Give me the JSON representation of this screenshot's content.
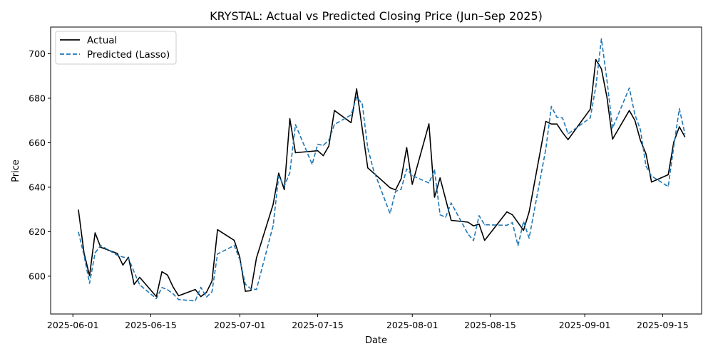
{
  "chart_data": {
    "type": "line",
    "title": "KRYSTAL: Actual vs Predicted Closing Price (Jun–Sep 2025)",
    "xlabel": "Date",
    "ylabel": "Price",
    "grid": false,
    "legend_position": "top-left",
    "x_range": [
      "2025-05-28",
      "2025-09-22"
    ],
    "y_range": [
      583,
      712
    ],
    "x_ticks": [
      "2025-06-01",
      "2025-06-15",
      "2025-07-01",
      "2025-07-15",
      "2025-08-01",
      "2025-08-15",
      "2025-09-01",
      "2025-09-15"
    ],
    "y_ticks": [
      600,
      620,
      640,
      660,
      680,
      700
    ],
    "colors": {
      "actual": "#000000",
      "predicted": "#1f77b4"
    },
    "series": [
      {
        "name": "Actual",
        "style": "solid",
        "points": [
          [
            "2025-06-02",
            629.8
          ],
          [
            "2025-06-03",
            610.5
          ],
          [
            "2025-06-04",
            600.2
          ],
          [
            "2025-06-05",
            619.5
          ],
          [
            "2025-06-06",
            613.0
          ],
          [
            "2025-06-09",
            610.2
          ],
          [
            "2025-06-10",
            605.0
          ],
          [
            "2025-06-11",
            608.5
          ],
          [
            "2025-06-12",
            596.3
          ],
          [
            "2025-06-13",
            599.5
          ],
          [
            "2025-06-16",
            590.8
          ],
          [
            "2025-06-17",
            602.0
          ],
          [
            "2025-06-18",
            600.5
          ],
          [
            "2025-06-19",
            595.2
          ],
          [
            "2025-06-20",
            591.2
          ],
          [
            "2025-06-23",
            594.0
          ],
          [
            "2025-06-24",
            590.8
          ],
          [
            "2025-06-25",
            592.7
          ],
          [
            "2025-06-26",
            597.8
          ],
          [
            "2025-06-27",
            620.9
          ],
          [
            "2025-06-30",
            616.1
          ],
          [
            "2025-07-01",
            608.5
          ],
          [
            "2025-07-02",
            593.2
          ],
          [
            "2025-07-03",
            593.5
          ],
          [
            "2025-07-04",
            608.2
          ],
          [
            "2025-07-07",
            632.3
          ],
          [
            "2025-07-08",
            646.3
          ],
          [
            "2025-07-09",
            638.9
          ],
          [
            "2025-07-10",
            670.8
          ],
          [
            "2025-07-11",
            655.5
          ],
          [
            "2025-07-15",
            656.4
          ],
          [
            "2025-07-16",
            654.2
          ],
          [
            "2025-07-17",
            658.5
          ],
          [
            "2025-07-18",
            674.5
          ],
          [
            "2025-07-21",
            669.0
          ],
          [
            "2025-07-22",
            684.2
          ],
          [
            "2025-07-24",
            648.7
          ],
          [
            "2025-07-25",
            646.5
          ],
          [
            "2025-07-28",
            639.8
          ],
          [
            "2025-07-29",
            638.8
          ],
          [
            "2025-07-30",
            643.8
          ],
          [
            "2025-07-31",
            657.8
          ],
          [
            "2025-08-01",
            641.3
          ],
          [
            "2025-08-04",
            668.5
          ],
          [
            "2025-08-05",
            635.5
          ],
          [
            "2025-08-06",
            644.2
          ],
          [
            "2025-08-08",
            625.1
          ],
          [
            "2025-08-11",
            624.3
          ],
          [
            "2025-08-12",
            622.6
          ],
          [
            "2025-08-13",
            623.4
          ],
          [
            "2025-08-14",
            616.1
          ],
          [
            "2025-08-18",
            628.9
          ],
          [
            "2025-08-19",
            627.6
          ],
          [
            "2025-08-21",
            620.6
          ],
          [
            "2025-08-22",
            628.9
          ],
          [
            "2025-08-25",
            669.6
          ],
          [
            "2025-08-26",
            668.4
          ],
          [
            "2025-08-27",
            668.4
          ],
          [
            "2025-08-28",
            664.6
          ],
          [
            "2025-08-29",
            661.4
          ],
          [
            "2025-09-02",
            675.1
          ],
          [
            "2025-09-03",
            697.4
          ],
          [
            "2025-09-04",
            693.2
          ],
          [
            "2025-09-05",
            680.4
          ],
          [
            "2025-09-06",
            661.6
          ],
          [
            "2025-09-09",
            674.5
          ],
          [
            "2025-09-10",
            670.1
          ],
          [
            "2025-09-11",
            661.1
          ],
          [
            "2025-09-12",
            655.0
          ],
          [
            "2025-09-13",
            642.3
          ],
          [
            "2025-09-16",
            645.6
          ],
          [
            "2025-09-17",
            660.3
          ],
          [
            "2025-09-18",
            667.2
          ],
          [
            "2025-09-19",
            662.6
          ]
        ]
      },
      {
        "name": "Predicted (Lasso)",
        "style": "dashed",
        "points": [
          [
            "2025-06-02",
            619.8
          ],
          [
            "2025-06-03",
            609.4
          ],
          [
            "2025-06-04",
            596.8
          ],
          [
            "2025-06-05",
            610.5
          ],
          [
            "2025-06-06",
            613.8
          ],
          [
            "2025-06-09",
            609.4
          ],
          [
            "2025-06-10",
            608.6
          ],
          [
            "2025-06-11",
            608.1
          ],
          [
            "2025-06-12",
            601.9
          ],
          [
            "2025-06-13",
            596.1
          ],
          [
            "2025-06-16",
            589.9
          ],
          [
            "2025-06-17",
            594.9
          ],
          [
            "2025-06-18",
            593.9
          ],
          [
            "2025-06-19",
            592.1
          ],
          [
            "2025-06-20",
            589.5
          ],
          [
            "2025-06-23",
            588.9
          ],
          [
            "2025-06-24",
            595.0
          ],
          [
            "2025-06-25",
            590.6
          ],
          [
            "2025-06-26",
            593.0
          ],
          [
            "2025-06-27",
            610.0
          ],
          [
            "2025-06-30",
            613.8
          ],
          [
            "2025-07-01",
            607.5
          ],
          [
            "2025-07-02",
            596.4
          ],
          [
            "2025-07-03",
            594.3
          ],
          [
            "2025-07-04",
            594.0
          ],
          [
            "2025-07-07",
            622.8
          ],
          [
            "2025-07-08",
            645.0
          ],
          [
            "2025-07-09",
            640.5
          ],
          [
            "2025-07-10",
            646.5
          ],
          [
            "2025-07-11",
            668.1
          ],
          [
            "2025-07-14",
            650.3
          ],
          [
            "2025-07-15",
            659.3
          ],
          [
            "2025-07-16",
            658.8
          ],
          [
            "2025-07-17",
            661.1
          ],
          [
            "2025-07-18",
            668.2
          ],
          [
            "2025-07-21",
            672.5
          ],
          [
            "2025-07-22",
            680.5
          ],
          [
            "2025-07-23",
            677.6
          ],
          [
            "2025-07-24",
            657.6
          ],
          [
            "2025-07-25",
            648.0
          ],
          [
            "2025-07-28",
            628.2
          ],
          [
            "2025-07-29",
            638.1
          ],
          [
            "2025-07-30",
            639.1
          ],
          [
            "2025-07-31",
            648.2
          ],
          [
            "2025-08-01",
            645.2
          ],
          [
            "2025-08-04",
            641.9
          ],
          [
            "2025-08-05",
            647.9
          ],
          [
            "2025-08-06",
            627.6
          ],
          [
            "2025-08-07",
            626.5
          ],
          [
            "2025-08-08",
            632.9
          ],
          [
            "2025-08-11",
            619.0
          ],
          [
            "2025-08-12",
            616.0
          ],
          [
            "2025-08-13",
            627.2
          ],
          [
            "2025-08-14",
            623.1
          ],
          [
            "2025-08-18",
            622.9
          ],
          [
            "2025-08-19",
            624.1
          ],
          [
            "2025-08-20",
            613.7
          ],
          [
            "2025-08-21",
            624.6
          ],
          [
            "2025-08-22",
            617.1
          ],
          [
            "2025-08-25",
            657.1
          ],
          [
            "2025-08-26",
            676.3
          ],
          [
            "2025-08-27",
            671.4
          ],
          [
            "2025-08-28",
            671.2
          ],
          [
            "2025-08-29",
            664.0
          ],
          [
            "2025-09-02",
            671.2
          ],
          [
            "2025-09-03",
            685.3
          ],
          [
            "2025-09-04",
            706.7
          ],
          [
            "2025-09-05",
            688.1
          ],
          [
            "2025-09-06",
            666.5
          ],
          [
            "2025-09-09",
            684.6
          ],
          [
            "2025-09-10",
            672.8
          ],
          [
            "2025-09-11",
            665.8
          ],
          [
            "2025-09-12",
            649.5
          ],
          [
            "2025-09-13",
            645.0
          ],
          [
            "2025-09-16",
            640.3
          ],
          [
            "2025-09-17",
            658.4
          ],
          [
            "2025-09-18",
            675.3
          ],
          [
            "2025-09-19",
            664.0
          ]
        ]
      }
    ]
  }
}
